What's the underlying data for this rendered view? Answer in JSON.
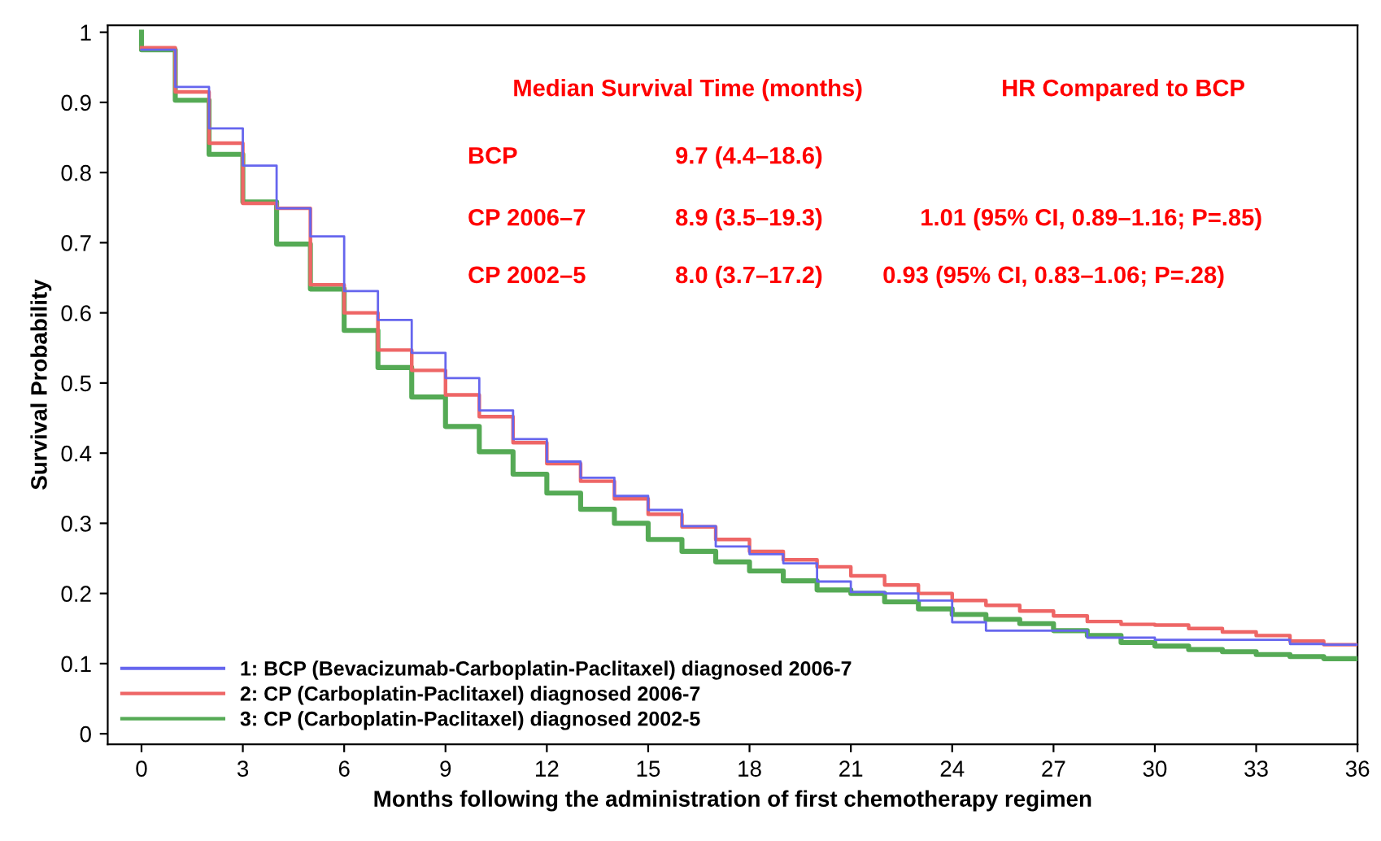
{
  "chart_data": {
    "type": "step",
    "xlabel": "Months following the administration of first chemotherapy regimen",
    "ylabel": "Survival Probability",
    "xlim": [
      -1,
      36
    ],
    "xticks": [
      0,
      3,
      6,
      9,
      12,
      15,
      18,
      21,
      24,
      27,
      30,
      33,
      36
    ],
    "ylim": [
      -0.015,
      1.01
    ],
    "yticks": [
      0,
      0.1,
      0.2,
      0.3,
      0.4,
      0.5,
      0.6,
      0.7,
      0.8,
      0.9,
      1
    ],
    "grid": false,
    "legend": "bottom left",
    "series": [
      {
        "name": "1: BCP (Bevacizumab-Carboplatin-Paclitaxel) diagnosed 2006-7",
        "color": "#6666ee",
        "x": [
          0,
          1,
          2,
          3,
          4,
          5,
          6,
          7,
          8,
          9,
          10,
          11,
          12,
          13,
          14,
          15,
          16,
          17,
          18,
          19,
          20,
          21,
          22,
          23,
          24,
          25,
          26,
          27,
          28,
          29,
          30,
          31,
          32,
          33,
          34,
          35,
          36
        ],
        "values": [
          0.975,
          0.922,
          0.863,
          0.81,
          0.749,
          0.709,
          0.631,
          0.59,
          0.543,
          0.507,
          0.461,
          0.42,
          0.388,
          0.365,
          0.339,
          0.319,
          0.296,
          0.267,
          0.256,
          0.243,
          0.217,
          0.202,
          0.2,
          0.19,
          0.159,
          0.147,
          0.147,
          0.147,
          0.137,
          0.137,
          0.134,
          0.134,
          0.134,
          0.134,
          0.128,
          0.127,
          0.127
        ]
      },
      {
        "name": "2: CP (Carboplatin-Paclitaxel) diagnosed 2006-7",
        "color": "#ee6666",
        "x": [
          0,
          1,
          2,
          3,
          4,
          5,
          6,
          7,
          8,
          9,
          10,
          11,
          12,
          13,
          14,
          15,
          16,
          17,
          18,
          19,
          20,
          21,
          22,
          23,
          24,
          25,
          26,
          27,
          28,
          29,
          30,
          31,
          32,
          33,
          34,
          35,
          36
        ],
        "values": [
          0.978,
          0.915,
          0.842,
          0.756,
          0.749,
          0.64,
          0.6,
          0.547,
          0.518,
          0.483,
          0.452,
          0.415,
          0.385,
          0.36,
          0.335,
          0.313,
          0.295,
          0.277,
          0.26,
          0.248,
          0.238,
          0.225,
          0.212,
          0.2,
          0.19,
          0.183,
          0.175,
          0.168,
          0.16,
          0.156,
          0.155,
          0.15,
          0.145,
          0.14,
          0.132,
          0.127,
          0.127
        ]
      },
      {
        "name": "3: CP (Carboplatin-Paclitaxel) diagnosed 2002-5",
        "color": "#55aa55",
        "x": [
          0,
          0,
          1,
          2,
          3,
          4,
          5,
          6,
          7,
          8,
          9,
          10,
          11,
          12,
          13,
          14,
          15,
          16,
          17,
          18,
          19,
          20,
          21,
          22,
          23,
          24,
          25,
          26,
          27,
          28,
          29,
          30,
          31,
          32,
          33,
          34,
          35,
          36
        ],
        "values": [
          1.0,
          0.975,
          0.903,
          0.826,
          0.758,
          0.698,
          0.634,
          0.575,
          0.522,
          0.48,
          0.438,
          0.402,
          0.37,
          0.343,
          0.32,
          0.3,
          0.277,
          0.26,
          0.245,
          0.232,
          0.218,
          0.205,
          0.2,
          0.188,
          0.178,
          0.17,
          0.163,
          0.157,
          0.147,
          0.14,
          0.13,
          0.125,
          0.12,
          0.117,
          0.113,
          0.11,
          0.107,
          0.107
        ]
      }
    ],
    "annotations": [
      "Median Survival Time (months)",
      "HR Compared to BCP",
      "BCP",
      "9.7 (4.4–18.6)",
      "CP 2006–7",
      "8.9 (3.5–19.3)",
      "1.01 (95% CI, 0.89–1.16; P=.85)",
      "CP 2002–5",
      "8.0 (3.7–17.2)",
      "0.93 (95% CI, 0.83–1.06; P=.28)"
    ]
  }
}
